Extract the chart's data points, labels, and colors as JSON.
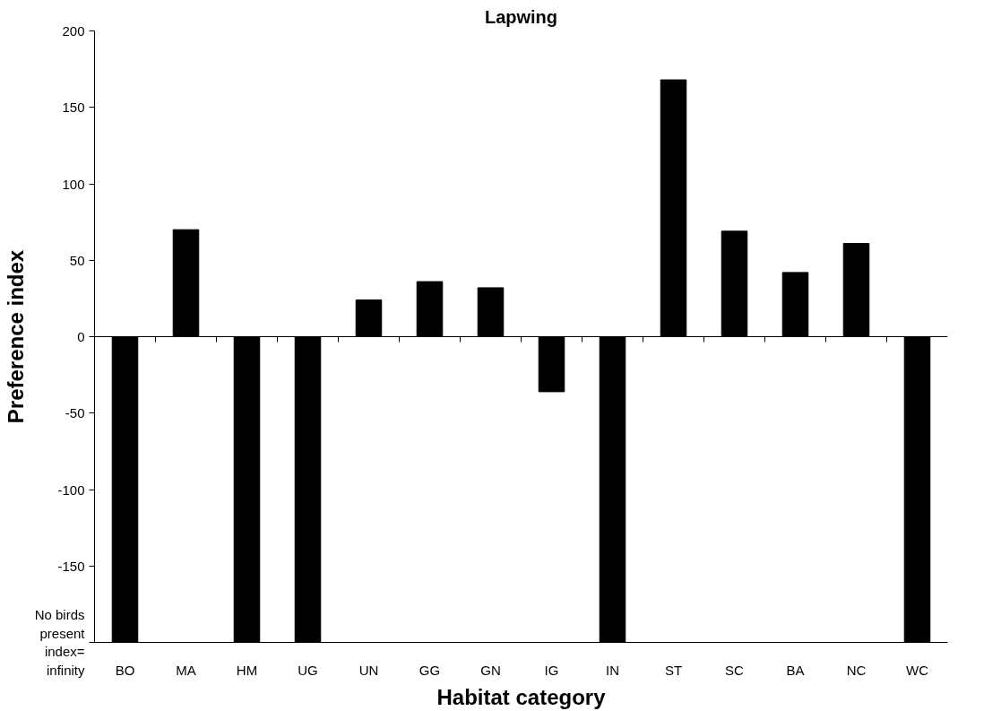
{
  "chart_data": {
    "type": "bar",
    "title": "Lapwing",
    "xlabel": "Habitat category",
    "ylabel": "Preference index",
    "categories": [
      "BO",
      "MA",
      "HM",
      "UG",
      "UN",
      "GG",
      "GN",
      "IG",
      "IN",
      "ST",
      "SC",
      "BA",
      "NC",
      "WC"
    ],
    "series": [
      {
        "color": "#000000",
        "values": [
          -200,
          70,
          -200,
          -200,
          24,
          36,
          32,
          -36,
          -200,
          168,
          69,
          42,
          61,
          -200
        ]
      }
    ],
    "ylim": [
      -200,
      200
    ],
    "yticks": [
      {
        "value": -200,
        "label": "No birds\npresent\nindex=\ninfinity"
      },
      -150,
      -100,
      -50,
      0,
      50,
      100,
      150,
      200
    ]
  }
}
